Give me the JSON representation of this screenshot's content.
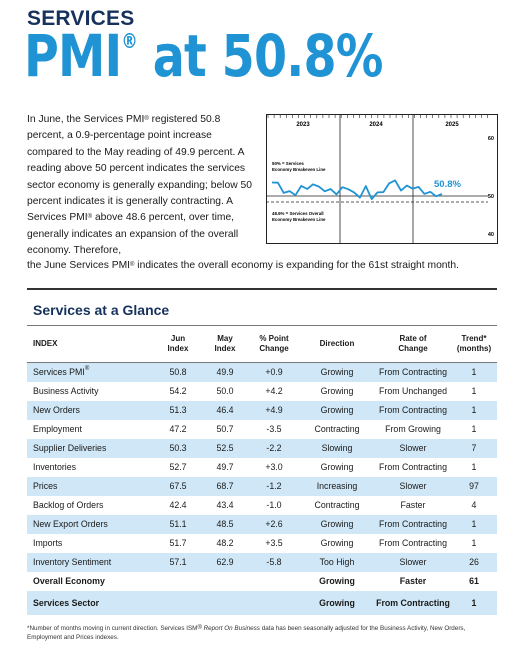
{
  "header": {
    "kicker": "SERVICES",
    "headline_main": "PMI",
    "headline_reg": "®",
    "headline_rest": " at 50.8%"
  },
  "intro": {
    "p1": "In June, the Services PMI",
    "p2": " registered 50.8 percent, a 0.9-percentage point increase compared to the May reading of 49.9 percent. A reading above 50 percent indicates the services sector economy is generally expanding; below 50 percent indicates it is generally contracting. A Services PMI",
    "p3": " above 48.6 percent, over time, generally indicates an expansion of the overall economy. Therefore,",
    "p4": "the June Services PMI",
    "p5": " indicates the overall economy is expanding for the 61st straight month.",
    "reg": "®"
  },
  "mini_chart": {
    "years": [
      "2023",
      "2024",
      "2025"
    ],
    "y_labels": [
      "60",
      "50",
      "40"
    ],
    "current_label": "50.8%",
    "line_50_label_1": "50% = Services",
    "line_50_label_2": "Economy Breakeven Line",
    "line_486_label_1": "48.6% = Services Overall",
    "line_486_label_2": "Economy Breakeven Line",
    "accent": "#1f93d3",
    "y_range": [
      40,
      60
    ],
    "series": [
      55.2,
      55.1,
      51.2,
      51.9,
      50.3,
      53.9,
      52.7,
      54.5,
      53.6,
      51.8,
      52.7,
      50.6,
      53.4,
      52.6,
      51.4,
      49.4,
      53.8,
      48.8,
      51.4,
      51.5,
      54.9,
      56.0,
      52.1,
      54.0,
      52.8,
      53.5,
      50.8,
      51.6,
      49.9,
      50.8
    ]
  },
  "glance": {
    "title": "Services at a Glance",
    "headers": {
      "index": "INDEX",
      "jun": [
        "Jun",
        "Index"
      ],
      "may": [
        "May",
        "Index"
      ],
      "pct": [
        "% Point",
        "Change"
      ],
      "direction": "Direction",
      "rate": [
        "Rate of",
        "Change"
      ],
      "trend": [
        "Trend*",
        "(months)"
      ]
    },
    "rows": [
      {
        "name": "Services PMI",
        "reg": "®",
        "jun": "50.8",
        "may": "49.9",
        "chg": "+0.9",
        "dir": "Growing",
        "rate": "From Contracting",
        "trend": "1",
        "style": "blue"
      },
      {
        "name": "Business Activity",
        "reg": "",
        "jun": "54.2",
        "may": "50.0",
        "chg": "+4.2",
        "dir": "Growing",
        "rate": "From Unchanged",
        "trend": "1",
        "style": ""
      },
      {
        "name": "New Orders",
        "reg": "",
        "jun": "51.3",
        "may": "46.4",
        "chg": "+4.9",
        "dir": "Growing",
        "rate": "From Contracting",
        "trend": "1",
        "style": "blue"
      },
      {
        "name": "Employment",
        "reg": "",
        "jun": "47.2",
        "may": "50.7",
        "chg": "-3.5",
        "dir": "Contracting",
        "rate": "From Growing",
        "trend": "1",
        "style": ""
      },
      {
        "name": "Supplier Deliveries",
        "reg": "",
        "jun": "50.3",
        "may": "52.5",
        "chg": "-2.2",
        "dir": "Slowing",
        "rate": "Slower",
        "trend": "7",
        "style": "blue"
      },
      {
        "name": "Inventories",
        "reg": "",
        "jun": "52.7",
        "may": "49.7",
        "chg": "+3.0",
        "dir": "Growing",
        "rate": "From Contracting",
        "trend": "1",
        "style": ""
      },
      {
        "name": "Prices",
        "reg": "",
        "jun": "67.5",
        "may": "68.7",
        "chg": "-1.2",
        "dir": "Increasing",
        "rate": "Slower",
        "trend": "97",
        "style": "blue"
      },
      {
        "name": "Backlog of Orders",
        "reg": "",
        "jun": "42.4",
        "may": "43.4",
        "chg": "-1.0",
        "dir": "Contracting",
        "rate": "Faster",
        "trend": "4",
        "style": ""
      },
      {
        "name": "New Export Orders",
        "reg": "",
        "jun": "51.1",
        "may": "48.5",
        "chg": "+2.6",
        "dir": "Growing",
        "rate": "From Contracting",
        "trend": "1",
        "style": "blue"
      },
      {
        "name": "Imports",
        "reg": "",
        "jun": "51.7",
        "may": "48.2",
        "chg": "+3.5",
        "dir": "Growing",
        "rate": "From Contracting",
        "trend": "1",
        "style": ""
      },
      {
        "name": "Inventory Sentiment",
        "reg": "",
        "jun": "57.1",
        "may": "62.9",
        "chg": "-5.8",
        "dir": "Too High",
        "rate": "Slower",
        "trend": "26",
        "style": "blue"
      },
      {
        "name": "Overall Economy",
        "reg": "",
        "jun": "",
        "may": "",
        "chg": "",
        "dir": "Growing",
        "rate": "Faster",
        "trend": "61",
        "style": "bold"
      },
      {
        "name": "Services Sector",
        "reg": "",
        "jun": "",
        "may": "",
        "chg": "",
        "dir": "Growing",
        "rate": "From Contracting",
        "trend": "1",
        "style": "boldblue"
      }
    ]
  },
  "footnote": {
    "a": "*Number of months moving in current direction. Services ISM",
    "reg": "®",
    "b": " ",
    "ital": "Report On Business",
    "c": " data has been seasonally adjusted for the Business Activity, New Orders, Employment and Prices indexes."
  }
}
